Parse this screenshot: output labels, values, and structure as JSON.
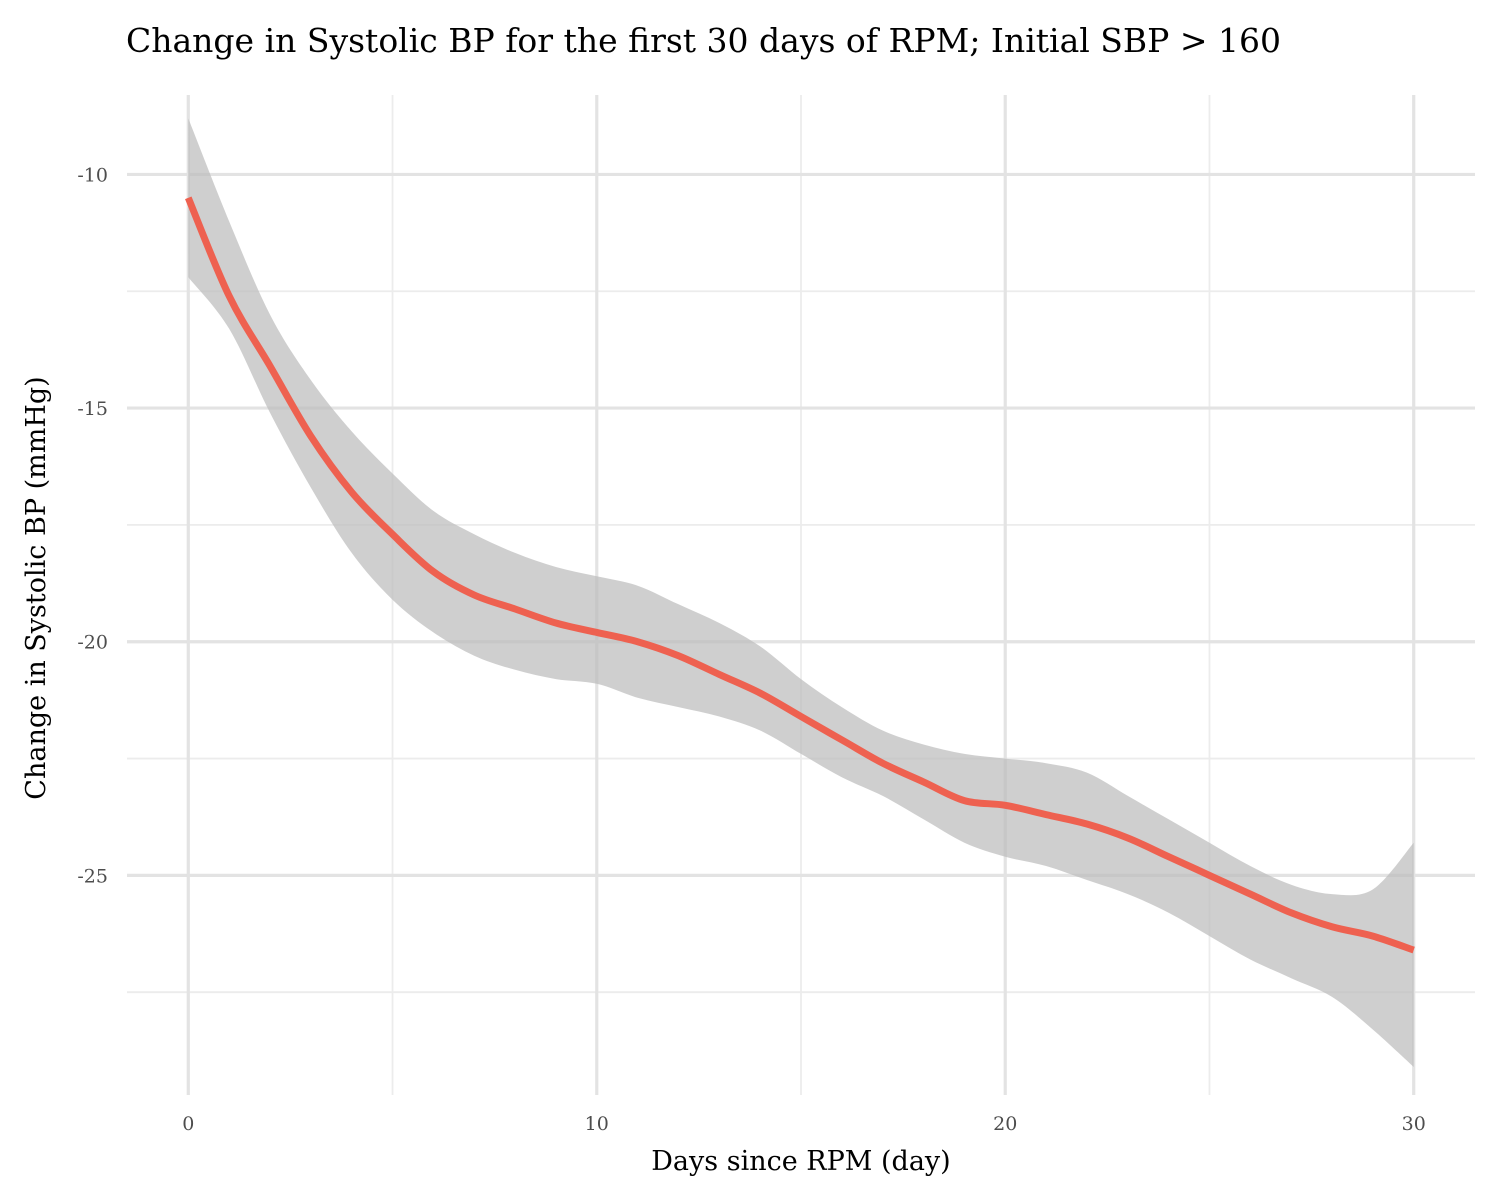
{
  "chart_data": {
    "type": "line",
    "title": "Change in Systolic BP for the first 30 days of RPM; Initial SBP > 160",
    "xlabel": "Days since RPM (day)",
    "ylabel": "Change in Systolic BP (mmHg)",
    "xlim": [
      -1.5,
      31.5
    ],
    "ylim": [
      -29.7,
      -8.3
    ],
    "x_ticks": [
      0,
      10,
      20,
      30
    ],
    "x_tick_labels": [
      "0",
      "10",
      "20",
      "30"
    ],
    "y_ticks": [
      -10,
      -15,
      -20,
      -25
    ],
    "y_tick_labels": [
      "-10",
      "-15",
      "-20",
      "-25"
    ],
    "grid": true,
    "legend": "none",
    "series": [
      {
        "color": "#ee6150",
        "band_color": "#bdbdbd",
        "x": [
          0,
          1,
          2,
          3,
          4,
          5,
          6,
          7,
          8,
          9,
          10,
          11,
          12,
          13,
          14,
          15,
          16,
          17,
          18,
          19,
          20,
          21,
          22,
          23,
          24,
          25,
          26,
          27,
          28,
          29,
          30
        ],
        "y": [
          -10.5,
          -12.6,
          -14.1,
          -15.6,
          -16.8,
          -17.7,
          -18.5,
          -19.0,
          -19.3,
          -19.6,
          -19.8,
          -20.0,
          -20.3,
          -20.7,
          -21.1,
          -21.6,
          -22.1,
          -22.6,
          -23.0,
          -23.4,
          -23.5,
          -23.7,
          -23.9,
          -24.2,
          -24.6,
          -25.0,
          -25.4,
          -25.8,
          -26.1,
          -26.3,
          -26.6
        ],
        "lower": [
          -12.2,
          -13.3,
          -15.1,
          -16.7,
          -18.1,
          -19.1,
          -19.8,
          -20.3,
          -20.6,
          -20.8,
          -20.9,
          -21.2,
          -21.4,
          -21.6,
          -21.9,
          -22.4,
          -22.9,
          -23.3,
          -23.8,
          -24.3,
          -24.6,
          -24.8,
          -25.1,
          -25.4,
          -25.8,
          -26.3,
          -26.8,
          -27.2,
          -27.6,
          -28.3,
          -29.1
        ],
        "upper": [
          -8.8,
          -11.0,
          -13.0,
          -14.4,
          -15.5,
          -16.4,
          -17.2,
          -17.7,
          -18.1,
          -18.4,
          -18.6,
          -18.8,
          -19.2,
          -19.6,
          -20.1,
          -20.8,
          -21.4,
          -21.9,
          -22.2,
          -22.4,
          -22.5,
          -22.6,
          -22.8,
          -23.3,
          -23.8,
          -24.3,
          -24.8,
          -25.2,
          -25.4,
          -25.3,
          -24.3
        ]
      }
    ]
  }
}
